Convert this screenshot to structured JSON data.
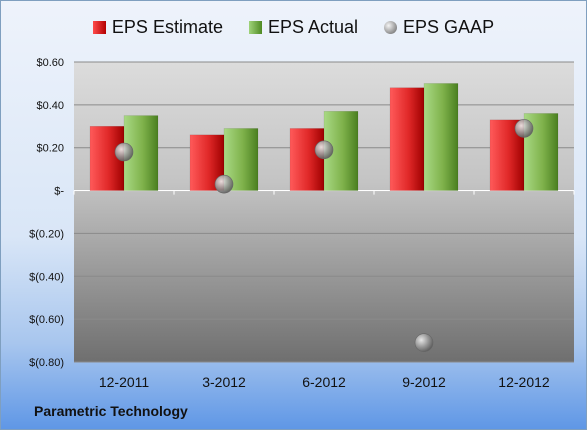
{
  "chart_data": {
    "type": "bar",
    "title": "",
    "xlabel": "",
    "ylabel": "",
    "categories": [
      "12-2011",
      "3-2012",
      "6-2012",
      "9-2012",
      "12-2012"
    ],
    "series": [
      {
        "name": "EPS Estimate",
        "kind": "bar",
        "color": "#d42020",
        "values": [
          0.3,
          0.26,
          0.29,
          0.48,
          0.33
        ]
      },
      {
        "name": "EPS Actual",
        "kind": "bar",
        "color": "#78b043",
        "values": [
          0.35,
          0.29,
          0.37,
          0.5,
          0.36
        ]
      },
      {
        "name": "EPS GAAP",
        "kind": "marker",
        "color": "#9a9a9a",
        "values": [
          0.18,
          0.03,
          0.19,
          -0.71,
          0.29
        ]
      }
    ],
    "ylim": [
      -0.8,
      0.6
    ],
    "yticks": [
      0.6,
      0.4,
      0.2,
      0,
      -0.2,
      -0.4,
      -0.6,
      -0.8
    ],
    "ytick_labels": [
      "$0.60",
      "$0.40",
      "$0.20",
      "$-",
      "$(0.20)",
      "$(0.40)",
      "$(0.60)",
      "$(0.80)"
    ],
    "grid": true,
    "legend_position": "top"
  },
  "footer": {
    "company": "Parametric Technology"
  }
}
